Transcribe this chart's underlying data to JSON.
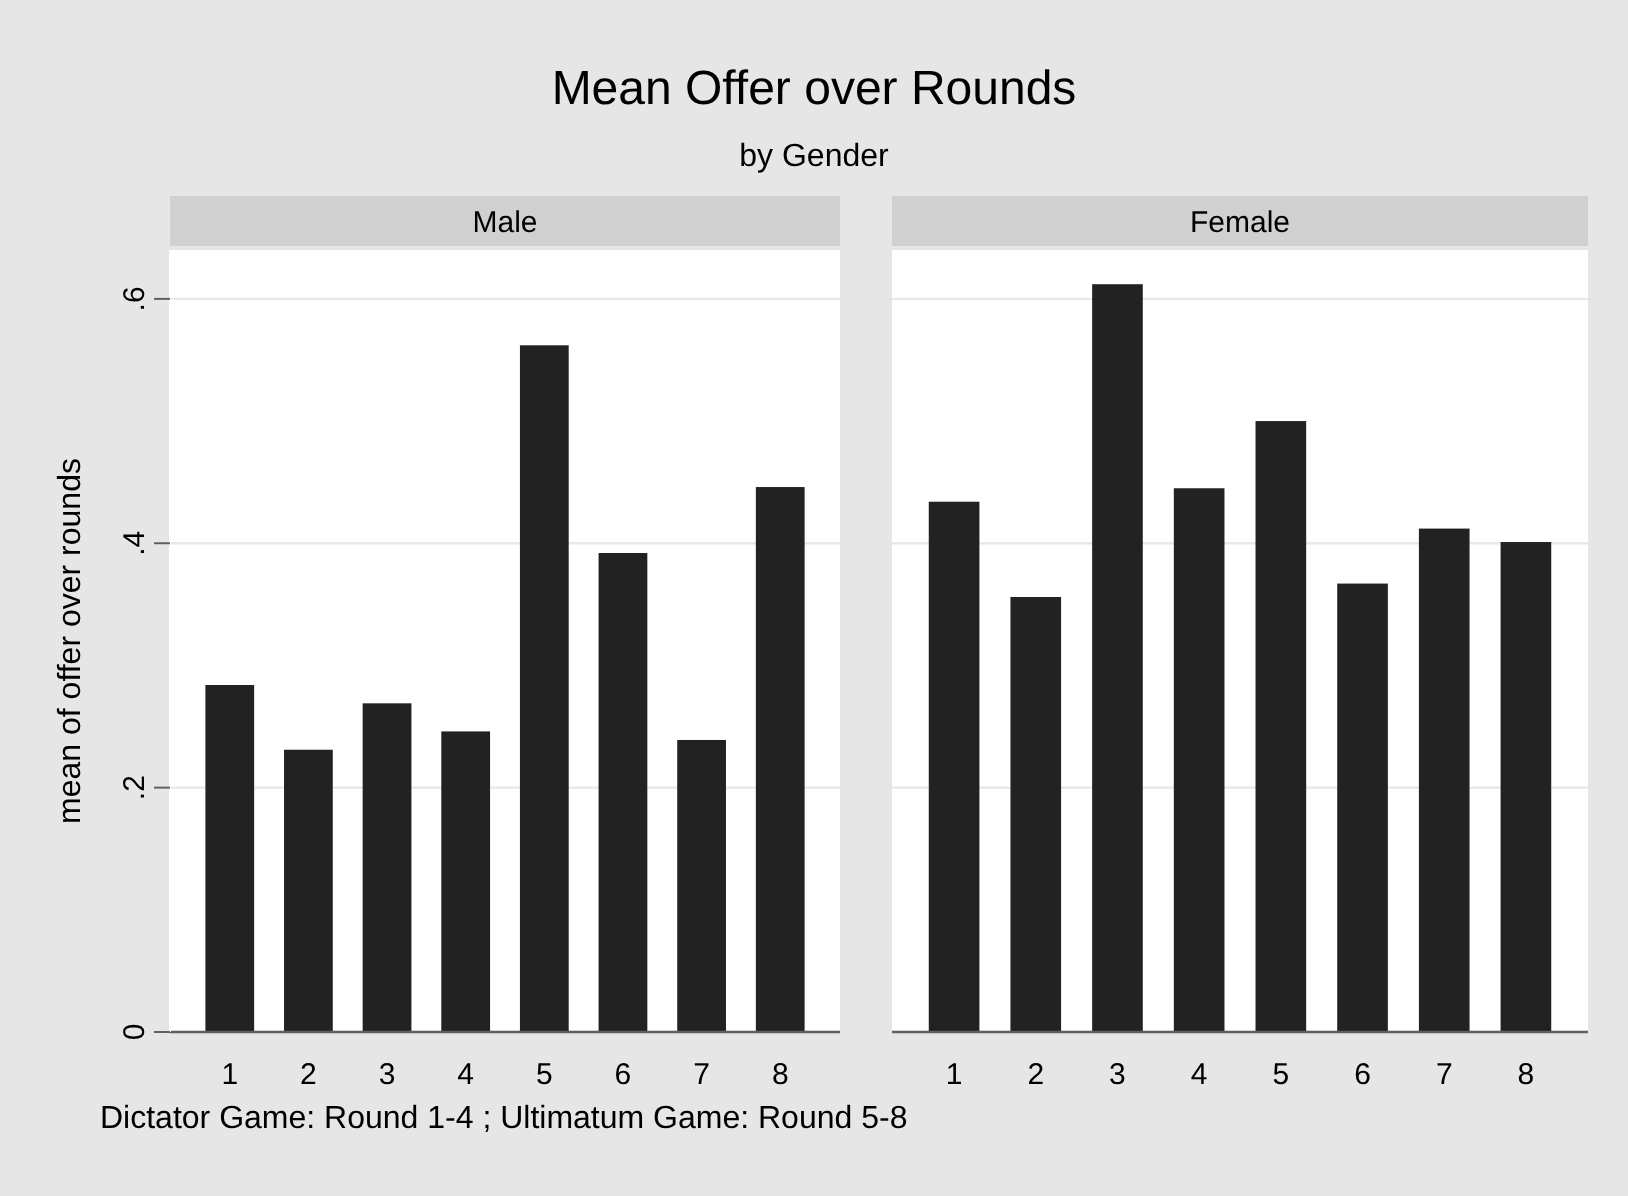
{
  "chart_data": [
    {
      "type": "bar",
      "title": "Mean Offer over Rounds",
      "subtitle": "by Gender",
      "ylabel": "mean of offer over rounds",
      "categories": [
        "1",
        "2",
        "3",
        "4",
        "5",
        "6",
        "7",
        "8"
      ],
      "values": [
        0.284,
        0.231,
        0.269,
        0.246,
        0.562,
        0.392,
        0.239,
        0.446
      ],
      "color": "#222222",
      "ylim": [
        0,
        0.64
      ],
      "yticks": [
        {
          "value": 0,
          "label": "0"
        },
        {
          "value": 0.2,
          "label": ".2"
        },
        {
          "value": 0.4,
          "label": ".4"
        },
        {
          "value": 0.6,
          "label": ".6"
        }
      ],
      "grid": "y",
      "annotations": [
        "Male",
        "Dictator Game: Round 1-4 ; Ultimatum Game: Round 5-8"
      ]
    },
    {
      "type": "bar",
      "categories": [
        "1",
        "2",
        "3",
        "4",
        "5",
        "6",
        "7",
        "8"
      ],
      "values": [
        0.434,
        0.356,
        0.612,
        0.445,
        0.5,
        0.367,
        0.412,
        0.401
      ],
      "color": "#222222",
      "ylim": [
        0,
        0.64
      ],
      "yticks": [
        0,
        0.2,
        0.4,
        0.6
      ],
      "grid": "y",
      "tick_labels": "x",
      "annotations": [
        "Female"
      ]
    }
  ]
}
